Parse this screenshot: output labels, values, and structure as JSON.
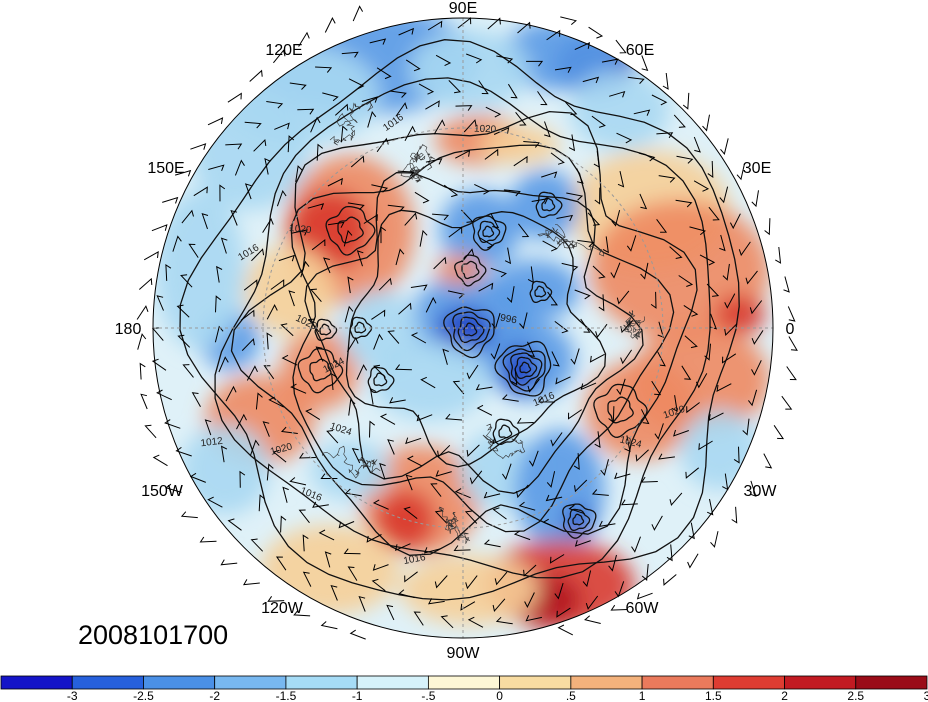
{
  "timestamp": "2008101700",
  "longitude_labels": {
    "top": "90E",
    "top_right": "60E",
    "upper_right": "30E",
    "right": "0",
    "lower_right": "30W",
    "bottom_right": "60W",
    "bottom": "90W",
    "bottom_left": "120W",
    "lower_left": "150W",
    "left": "180",
    "upper_left": "150E",
    "top_left": "120E"
  },
  "colorbar": {
    "tick_labels": [
      "-3",
      "-2.5",
      "-2",
      "-1.5",
      "-1",
      "-.5",
      "0",
      ".5",
      "1",
      "1.5",
      "2",
      "2.5",
      "3"
    ],
    "colors": [
      "#1414c8",
      "#2660dc",
      "#4a90e6",
      "#78b8f0",
      "#a6dcf6",
      "#d6f2fa",
      "#fdf7d6",
      "#f8dca2",
      "#f3b27c",
      "#ea7a5c",
      "#de3c32",
      "#c21a22",
      "#9a0c18"
    ]
  },
  "contour_labels": [
    "1016",
    "1020",
    "1016",
    "1020",
    "1024",
    "996",
    "1016",
    "1024",
    "1020",
    "1024",
    "1020",
    "1016",
    "1016",
    "1020",
    "1012"
  ],
  "map": {
    "projection": "north polar stereographic",
    "shading_colors": {
      "deep_blue": "#1b3fc4",
      "blue": "#5a9ae6",
      "light_blue": "#a8d8f2",
      "cream": "#fbf2d2",
      "tan": "#f6cf98",
      "orange": "#ee8a62",
      "red": "#d93a30",
      "dark_red": "#b0141e"
    }
  }
}
